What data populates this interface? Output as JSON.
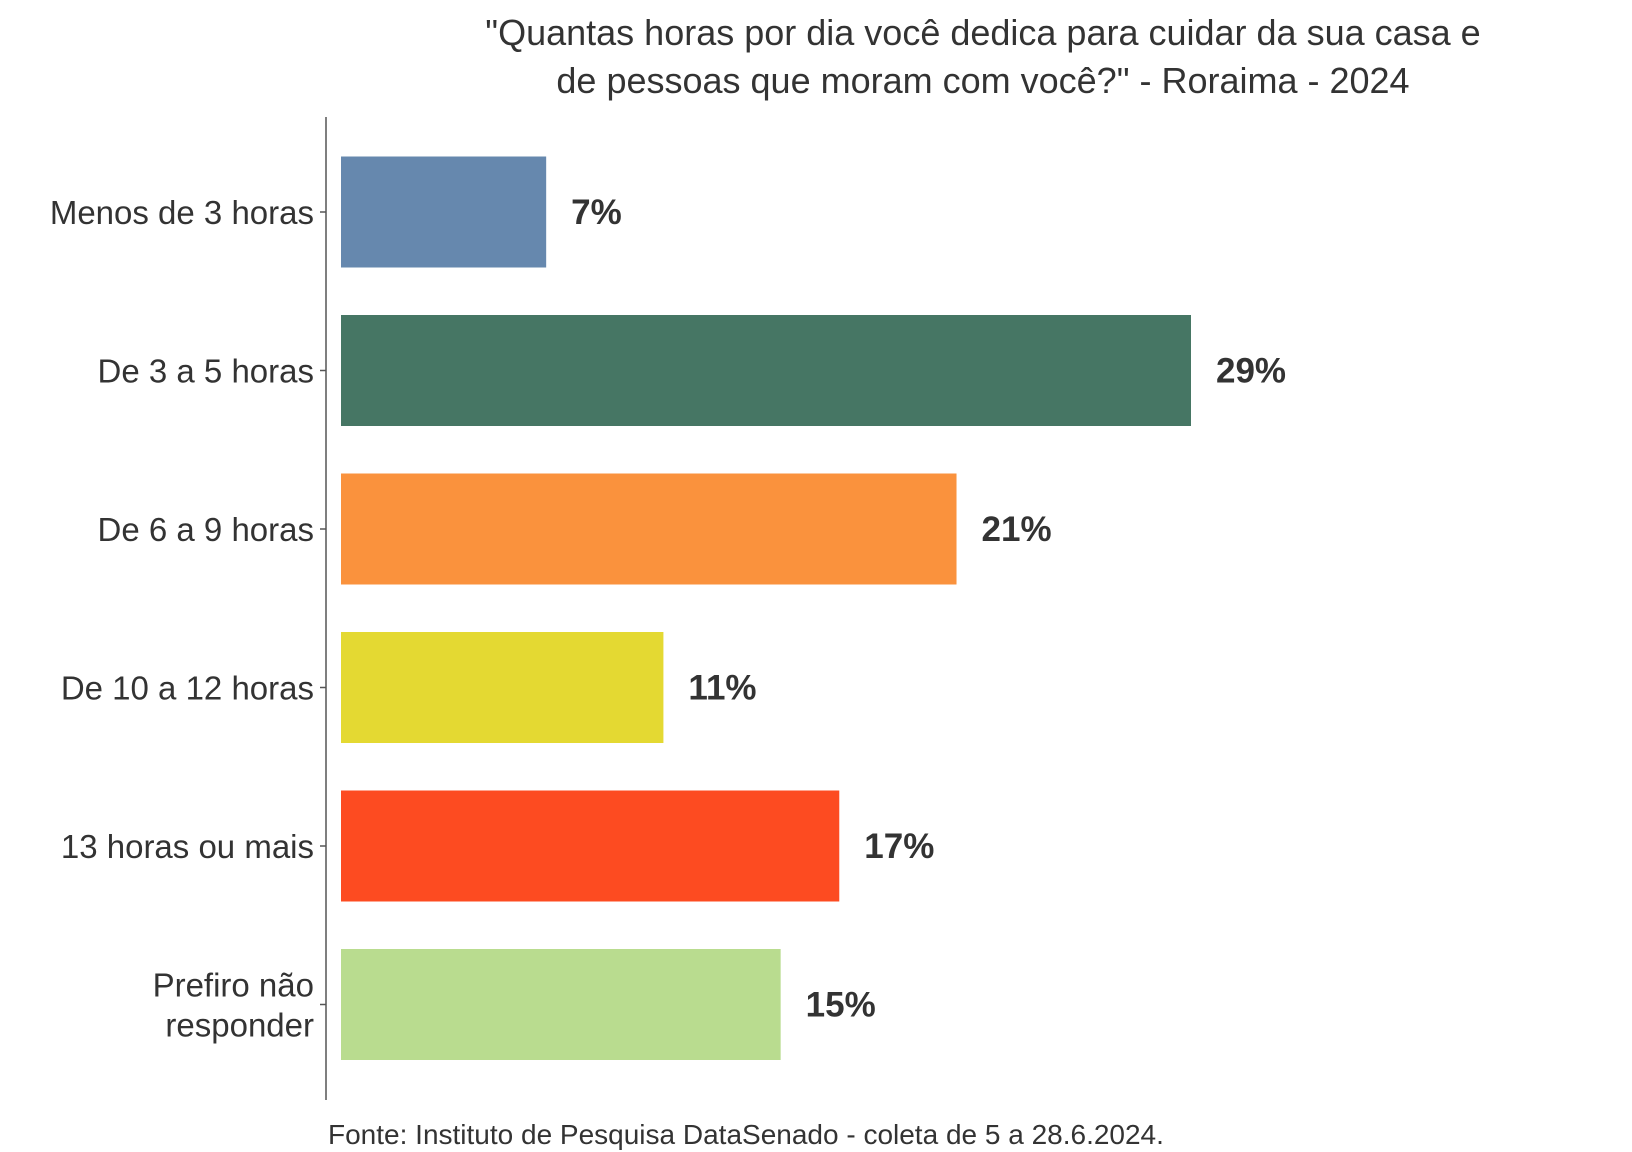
{
  "chart_data": {
    "type": "bar",
    "orientation": "horizontal",
    "title": "\"Quantas horas por dia você dedica para cuidar da sua casa e de pessoas que moram com você?\" - Roraima - 2024",
    "title_lines": [
      "\"Quantas horas por dia você dedica para cuidar da sua casa e",
      "de pessoas que moram com você?\" - Roraima - 2024"
    ],
    "categories": [
      "Menos de 3 horas",
      "De 3 a 5 horas",
      "De 6 a 9 horas",
      "De 10 a 12 horas",
      "13 horas ou mais",
      "Prefiro não responder"
    ],
    "category_lines": [
      [
        "Menos de 3 horas"
      ],
      [
        "De 3 a 5 horas"
      ],
      [
        "De 6 a 9 horas"
      ],
      [
        "De 10 a 12 horas"
      ],
      [
        "13 horas ou mais"
      ],
      [
        "Prefiro não",
        "responder"
      ]
    ],
    "values": [
      7,
      29,
      21,
      11,
      17,
      15
    ],
    "value_labels": [
      "7%",
      "29%",
      "21%",
      "11%",
      "17%",
      "15%"
    ],
    "colors": [
      "#6688ae",
      "#467664",
      "#fa923d",
      "#e4d932",
      "#fd4b21",
      "#b9dc8f"
    ],
    "xlim": [
      0,
      35
    ],
    "xlabel": "",
    "ylabel": "",
    "grid": false,
    "source": "Fonte: Instituto de Pesquisa DataSenado - coleta de 5 a 28.6.2024."
  }
}
